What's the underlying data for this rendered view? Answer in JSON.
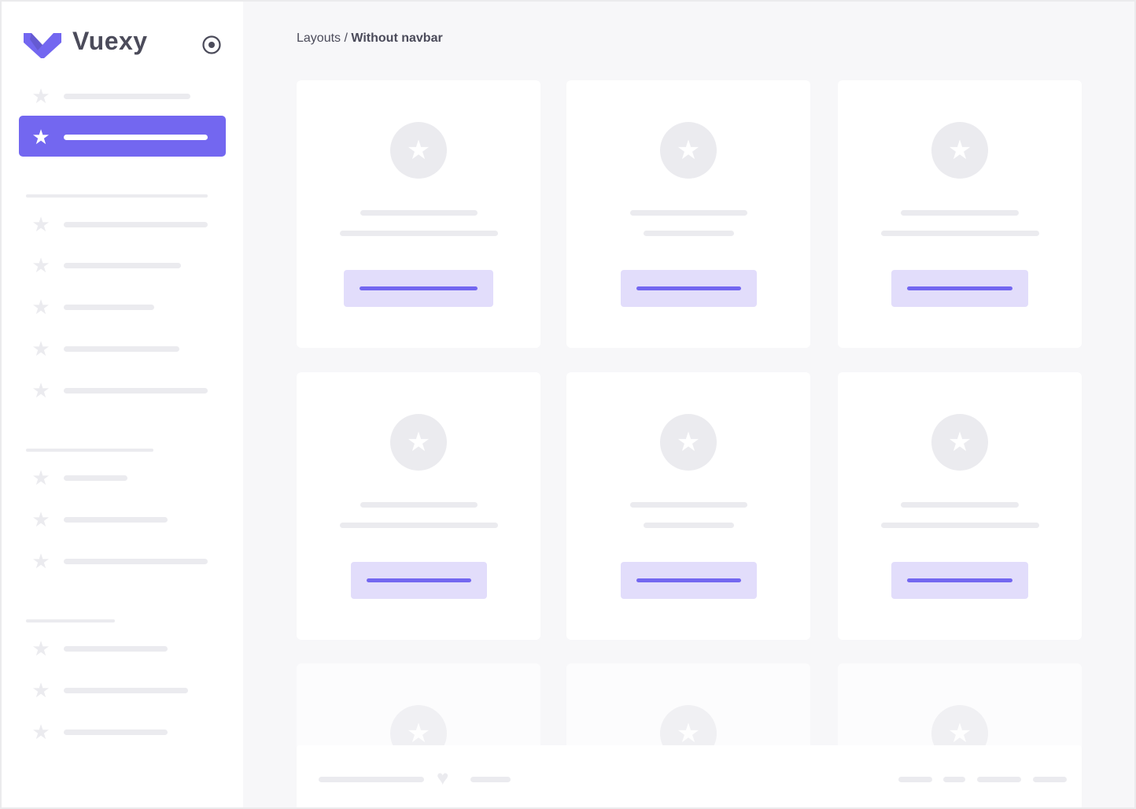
{
  "brand": {
    "name": "Vuexy",
    "accent": "#7367f0",
    "logo_icon": "vuexy-v-logo",
    "toggle_icon": "radio-circle-icon"
  },
  "breadcrumb": {
    "parent": "Layouts",
    "separator": " / ",
    "current": "Without navbar"
  },
  "sidebar": {
    "item_icon": "star-icon",
    "active_index": 1,
    "sections": 4
  },
  "cards": {
    "icon": "star-icon",
    "count": 9
  },
  "footer": {
    "icon": "heart-icon"
  }
}
